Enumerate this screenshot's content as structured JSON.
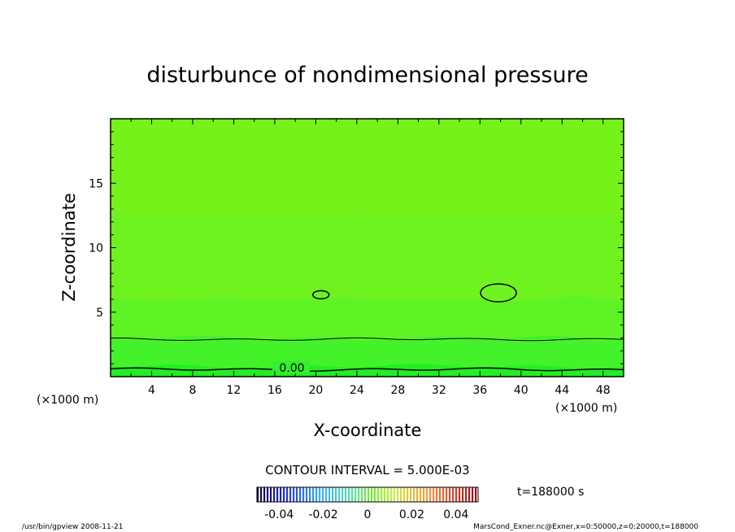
{
  "chart_data": {
    "type": "heatmap",
    "title": "disturbunce of nondimensional pressure",
    "xlabel": "X-coordinate",
    "ylabel": "Z-coordinate",
    "x_unit": "(×1000 m)",
    "y_unit": "(×1000 m)",
    "xlim": [
      0,
      50
    ],
    "ylim": [
      0,
      20
    ],
    "x_ticks": [
      4,
      8,
      12,
      16,
      20,
      24,
      28,
      32,
      36,
      40,
      44,
      48
    ],
    "y_ticks": [
      5,
      10,
      15
    ],
    "contour_interval_label": "CONTOUR INTERVAL = 5.000E-03",
    "contour_label": "0.00",
    "time_label": "t=188000 s",
    "colorbar": {
      "range": [
        -0.05,
        0.05
      ],
      "tick_labels": [
        "-0.04",
        "-0.02",
        "0",
        "0.02",
        "0.04"
      ],
      "tick_values": [
        -0.04,
        -0.02,
        0,
        0.02,
        0.04
      ]
    },
    "bands": [
      {
        "z_from": 0.0,
        "z_to": 0.8,
        "value": 0.0,
        "color": "#22ee22"
      },
      {
        "z_from": 0.8,
        "z_to": 3.0,
        "value": 0.005,
        "color": "#44f22a"
      },
      {
        "z_from": 3.0,
        "z_to": 6.0,
        "value": 0.008,
        "color": "#5ef324"
      },
      {
        "z_from": 6.0,
        "z_to": 12.5,
        "value": 0.01,
        "color": "#6ef31f"
      },
      {
        "z_from": 12.5,
        "z_to": 20.0,
        "value": 0.01,
        "color": "#76f21b"
      }
    ]
  },
  "footer": {
    "left": "/usr/bin/gpview   2008-11-21",
    "right": "MarsCond_Exner.nc@Exner,x=0:50000,z=0:20000,t=188000"
  }
}
